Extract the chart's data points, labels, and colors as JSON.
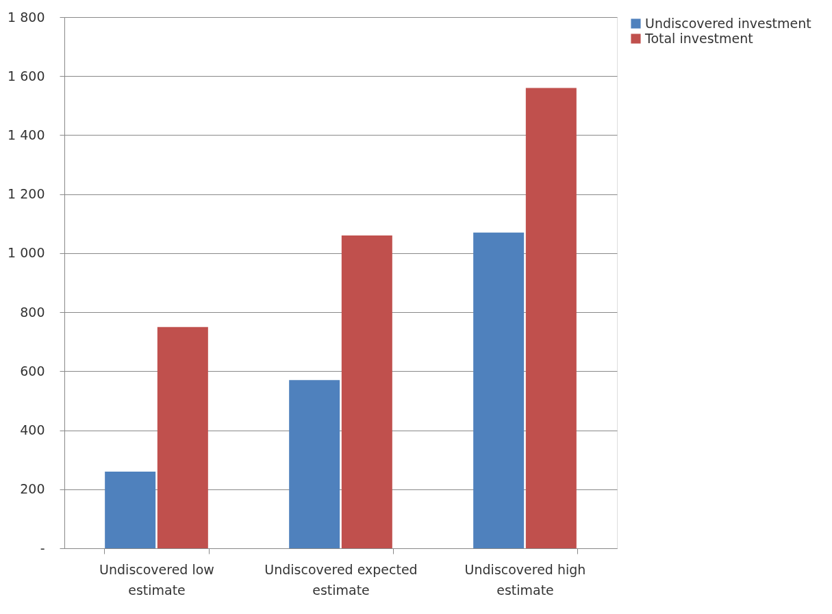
{
  "chart_data": {
    "type": "bar",
    "categories": [
      "Undiscovered low estimate",
      "Undiscovered expected estimate",
      "Undiscovered high estimate"
    ],
    "series": [
      {
        "name": "Undiscovered investment",
        "color": "#4f81bd",
        "values": [
          260,
          570,
          1070
        ]
      },
      {
        "name": "Total investment",
        "color": "#c0504d",
        "values": [
          750,
          1060,
          1560
        ]
      }
    ],
    "ylim": [
      0,
      1800
    ],
    "yticks": [
      {
        "value": 0,
        "label": "-"
      },
      200,
      400,
      600,
      800,
      {
        "value": 1000,
        "label": "1 000"
      },
      {
        "value": 1200,
        "label": "1 200"
      },
      {
        "value": 1400,
        "label": "1 400"
      },
      {
        "value": 1600,
        "label": "1 600"
      },
      {
        "value": 1800,
        "label": "1 800"
      }
    ],
    "grid": "y",
    "legend": "right"
  }
}
